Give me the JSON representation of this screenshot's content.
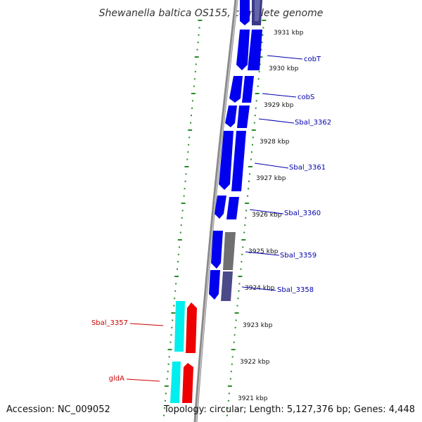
{
  "title": "Shewanella baltica OS155, complete genome",
  "accession": "Accession: NC_009052",
  "summary": "Topology: circular; Length: 5,127,376 bp; Genes: 4,448",
  "colors": {
    "forward_gene": "#0000ee",
    "forward_gene_dark": "#3a3a8a",
    "rna_red": "#ee0000",
    "rna_cyan": "#00eeee",
    "gray_gene": "#777777",
    "backbone": "#888888",
    "tick_dots": "#2a8a2a",
    "label_blue": "#0000aa",
    "label_red": "#cc0000"
  },
  "ruler": {
    "unit": "kbp",
    "ticks": [
      {
        "kbp": 3931,
        "label": "3931 kbp"
      },
      {
        "kbp": 3930,
        "label": "3930 kbp"
      },
      {
        "kbp": 3929,
        "label": "3929 kbp"
      },
      {
        "kbp": 3928,
        "label": "3928 kbp"
      },
      {
        "kbp": 3927,
        "label": "3927 kbp"
      },
      {
        "kbp": 3926,
        "label": "3926 kbp"
      },
      {
        "kbp": 3925,
        "label": "3925 kbp"
      },
      {
        "kbp": 3924,
        "label": "3924 kbp"
      },
      {
        "kbp": 3923,
        "label": "3923 kbp"
      },
      {
        "kbp": 3922,
        "label": "3922 kbp"
      },
      {
        "kbp": 3921,
        "label": "3921 kbp"
      }
    ]
  },
  "gene_labels": [
    {
      "name": "cobT",
      "color": "label_blue"
    },
    {
      "name": "cobS",
      "color": "label_blue"
    },
    {
      "name": "Sbal_3362",
      "color": "label_blue"
    },
    {
      "name": "Sbal_3361",
      "color": "label_blue"
    },
    {
      "name": "Sbal_3360",
      "color": "label_blue"
    },
    {
      "name": "Sbal_3359",
      "color": "label_blue"
    },
    {
      "name": "Sbal_3358",
      "color": "label_blue"
    },
    {
      "name": "Sbal_3357",
      "color": "label_red"
    },
    {
      "name": "gldA",
      "color": "label_red"
    }
  ]
}
